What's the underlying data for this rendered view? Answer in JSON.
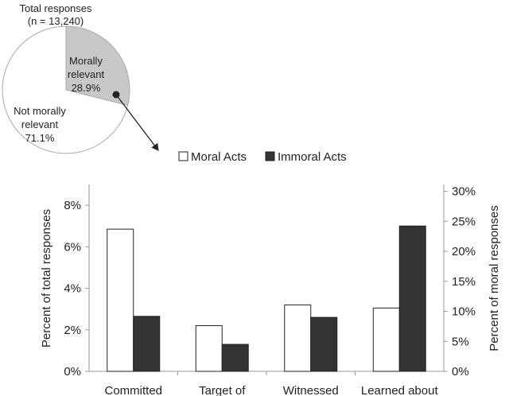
{
  "pie": {
    "title_line1": "Total responses",
    "title_line2": "(n = 13,240)",
    "slices": [
      {
        "label_line1": "Morally",
        "label_line2": "relevant",
        "value_label": "28.9%",
        "value": 28.9,
        "color": "#c8c8c8"
      },
      {
        "label_line1": "Not morally",
        "label_line2": "relevant",
        "value_label": "71.1%",
        "value": 71.1,
        "color": "#ffffff"
      }
    ]
  },
  "chart_data": {
    "type": "bar",
    "categories": [
      "Committed",
      "Target of",
      "Witnessed",
      "Learned about"
    ],
    "series": [
      {
        "name": "Moral Acts",
        "values": [
          6.85,
          2.2,
          3.2,
          3.05
        ],
        "color": "#ffffff"
      },
      {
        "name": "Immoral Acts",
        "values": [
          2.65,
          1.3,
          2.6,
          7.0
        ],
        "color": "#333333"
      }
    ],
    "ylabel": "Percent of total responses",
    "ylim": [
      0,
      9
    ],
    "yticks": [
      0,
      2,
      4,
      6,
      8
    ],
    "ytick_labels": [
      "0%",
      "2%",
      "4%",
      "6%",
      "8%"
    ],
    "y2label": "Percent of moral responses",
    "y2ticks": [
      0,
      5,
      10,
      15,
      20,
      25,
      30
    ],
    "y2tick_labels": [
      "0%",
      "5%",
      "10%",
      "15%",
      "20%",
      "25%",
      "30%"
    ],
    "y2_per_y": 3.46,
    "legend_position": "top-center",
    "grid": false
  }
}
